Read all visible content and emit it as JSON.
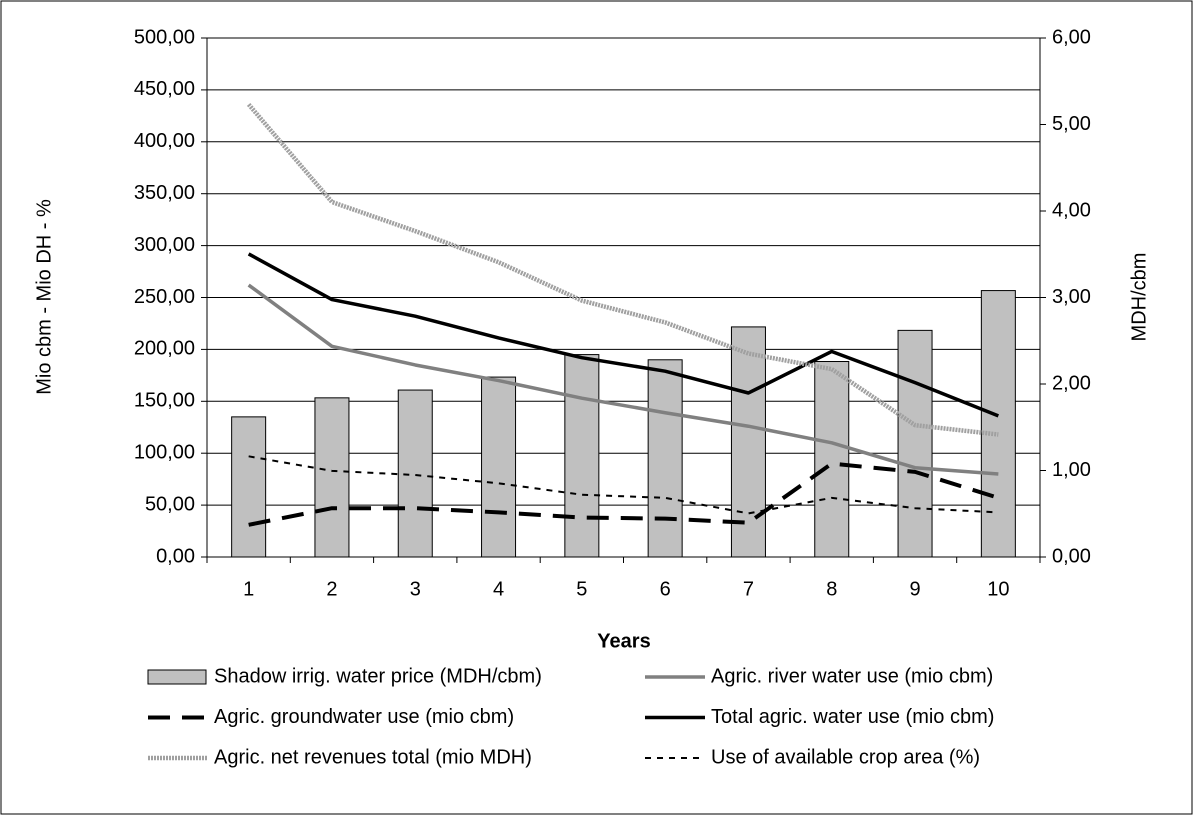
{
  "chart_data": {
    "type": "bar-line",
    "categories": [
      "1",
      "2",
      "3",
      "4",
      "5",
      "6",
      "7",
      "8",
      "9",
      "10"
    ],
    "xlabel": "Years",
    "ylabel": "Mio cbm - Mio DH - %",
    "y2label": "MDH/cbm",
    "ylim": [
      0,
      500
    ],
    "yticks": [
      {
        "value": 0,
        "label": "0,00"
      },
      {
        "value": 50,
        "label": "50,00"
      },
      {
        "value": 100,
        "label": "100,00"
      },
      {
        "value": 150,
        "label": "150,00"
      },
      {
        "value": 200,
        "label": "200,00"
      },
      {
        "value": 250,
        "label": "250,00"
      },
      {
        "value": 300,
        "label": "300,00"
      },
      {
        "value": 350,
        "label": "350,00"
      },
      {
        "value": 400,
        "label": "400,00"
      },
      {
        "value": 450,
        "label": "450,00"
      },
      {
        "value": 500,
        "label": "500,00"
      }
    ],
    "y2lim": [
      0,
      6
    ],
    "y2ticks": [
      {
        "value": 0,
        "label": "0,00"
      },
      {
        "value": 1,
        "label": "1,00"
      },
      {
        "value": 2,
        "label": "2,00"
      },
      {
        "value": 3,
        "label": "3,00"
      },
      {
        "value": 4,
        "label": "4,00"
      },
      {
        "value": 5,
        "label": "5,00"
      },
      {
        "value": 6,
        "label": "6,00"
      }
    ],
    "grid": true,
    "series": [
      {
        "name": "Shadow irrig. water price (MDH/cbm)",
        "kind": "bar",
        "axis": "y2",
        "color": "#c0c0c0",
        "values": [
          1.62,
          1.84,
          1.93,
          2.08,
          2.34,
          2.28,
          2.66,
          2.26,
          2.62,
          3.08
        ]
      },
      {
        "name": "Agric. river water use (mio cbm)",
        "kind": "line",
        "color": "#808080",
        "style": "solid",
        "values": [
          262,
          203,
          185,
          170,
          153,
          139,
          126,
          110,
          86,
          80
        ]
      },
      {
        "name": "Agric. groundwater use (mio cbm)",
        "kind": "line",
        "color": "#000000",
        "style": "dashed",
        "values": [
          31,
          47,
          47,
          43,
          38,
          37,
          33,
          90,
          82,
          57
        ]
      },
      {
        "name": "Total agric. water use (mio cbm)",
        "kind": "line",
        "color": "#000000",
        "style": "solid",
        "values": [
          292,
          248,
          232,
          211,
          192,
          179,
          158,
          198,
          168,
          136
        ]
      },
      {
        "name": "Agric. net revenues total (mio MDH)",
        "kind": "line",
        "color": "#a0a0a0",
        "style": "hatched",
        "values": [
          436,
          342,
          314,
          284,
          247,
          226,
          196,
          181,
          127,
          118
        ]
      },
      {
        "name": "Use of available crop area (%)",
        "kind": "line",
        "color": "#000000",
        "style": "dotted",
        "values": [
          97,
          83,
          79,
          71,
          60,
          57,
          42,
          57,
          47,
          43
        ]
      }
    ]
  }
}
